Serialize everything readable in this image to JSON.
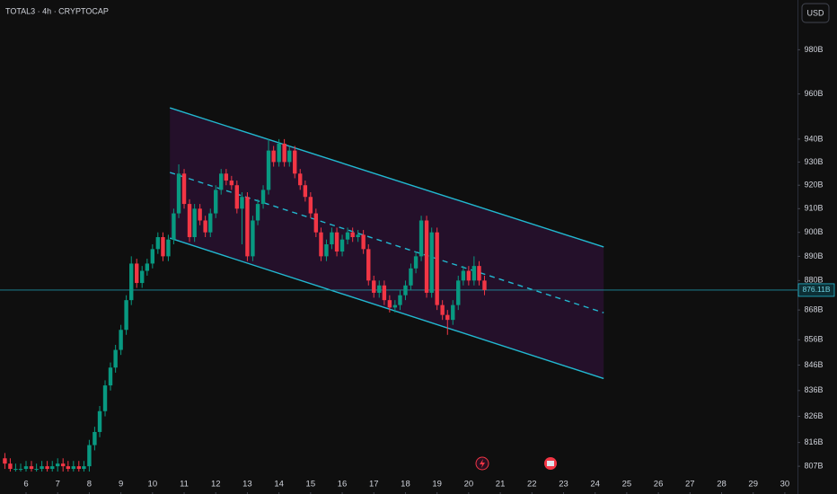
{
  "chart_data": {
    "type": "candlestick",
    "title": "TOTAL3 · 4h · CRYPTOCAP",
    "currency": "USD",
    "log_scale": true,
    "up_color": "#089981",
    "down_color": "#f23645",
    "x": [
      5.33,
      5.5,
      5.67,
      5.83,
      6,
      6.17,
      6.33,
      6.5,
      6.67,
      6.83,
      7,
      7.17,
      7.33,
      7.5,
      7.67,
      7.83,
      8,
      8.17,
      8.33,
      8.5,
      8.67,
      8.83,
      9,
      9.17,
      9.33,
      9.5,
      9.67,
      9.83,
      10,
      10.17,
      10.33,
      10.5,
      10.67,
      10.83,
      11,
      11.17,
      11.33,
      11.5,
      11.67,
      11.83,
      12,
      12.17,
      12.33,
      12.5,
      12.67,
      12.83,
      13,
      13.17,
      13.33,
      13.5,
      13.67,
      13.83,
      14,
      14.17,
      14.33,
      14.5,
      14.67,
      14.83,
      15,
      15.17,
      15.33,
      15.5,
      15.67,
      15.83,
      16,
      16.17,
      16.33,
      16.5,
      16.67,
      16.83,
      17,
      17.17,
      17.33,
      17.5,
      17.67,
      17.83,
      18,
      18.17,
      18.33,
      18.5,
      18.67,
      18.83,
      19,
      19.17,
      19.33,
      19.5,
      19.67,
      19.83,
      20,
      20.17,
      20.33,
      20.5
    ],
    "open": [
      810,
      808,
      806,
      806,
      806,
      807,
      806,
      806,
      807,
      806,
      807,
      808,
      807,
      806,
      807,
      806,
      807,
      815,
      820,
      828,
      838,
      845,
      852,
      860,
      872,
      887,
      879,
      884,
      887,
      893,
      898,
      890,
      897,
      908,
      925,
      912,
      898,
      910,
      905,
      900,
      908,
      918,
      925,
      922,
      920,
      910,
      915,
      890,
      905,
      912,
      918,
      935,
      930,
      938,
      930,
      935,
      925,
      920,
      915,
      908,
      900,
      890,
      895,
      900,
      892,
      897,
      900,
      898,
      899,
      893,
      880,
      875,
      878,
      872,
      869,
      870,
      874,
      878,
      885,
      890,
      905,
      875,
      900,
      870,
      866,
      864,
      870,
      880,
      884,
      880,
      886,
      880
    ],
    "high": [
      812,
      810,
      808,
      808,
      809,
      809,
      808,
      809,
      809,
      809,
      810,
      810,
      809,
      809,
      809,
      809,
      817,
      822,
      830,
      840,
      847,
      854,
      862,
      874,
      890,
      889,
      886,
      889,
      895,
      900,
      900,
      899,
      910,
      929,
      927,
      914,
      912,
      912,
      907,
      910,
      920,
      927,
      927,
      924,
      922,
      917,
      917,
      907,
      914,
      920,
      940,
      937,
      940,
      940,
      937,
      937,
      927,
      922,
      917,
      910,
      902,
      897,
      902,
      902,
      899,
      902,
      902,
      901,
      901,
      895,
      882,
      880,
      880,
      874,
      872,
      876,
      880,
      887,
      892,
      907,
      907,
      902,
      902,
      872,
      868,
      872,
      882,
      886,
      886,
      890,
      888,
      882
    ],
    "low": [
      806,
      805,
      805,
      805,
      805,
      805,
      805,
      805,
      805,
      805,
      805,
      805,
      805,
      805,
      805,
      805,
      805,
      813,
      818,
      826,
      836,
      843,
      850,
      858,
      870,
      877,
      877,
      882,
      885,
      891,
      888,
      888,
      895,
      906,
      910,
      896,
      896,
      903,
      898,
      898,
      906,
      916,
      920,
      918,
      908,
      895,
      888,
      888,
      903,
      910,
      916,
      928,
      928,
      928,
      928,
      923,
      918,
      913,
      906,
      898,
      888,
      888,
      893,
      890,
      890,
      895,
      896,
      896,
      891,
      878,
      873,
      873,
      870,
      867,
      867,
      868,
      872,
      876,
      883,
      888,
      873,
      873,
      868,
      864,
      858,
      862,
      868,
      878,
      878,
      878,
      878,
      874
    ],
    "close": [
      808,
      806,
      806,
      806,
      807,
      806,
      806,
      807,
      806,
      807,
      808,
      807,
      806,
      807,
      806,
      807,
      815,
      820,
      828,
      838,
      845,
      852,
      860,
      872,
      887,
      879,
      884,
      887,
      893,
      898,
      890,
      897,
      908,
      925,
      912,
      898,
      910,
      905,
      900,
      908,
      918,
      925,
      922,
      920,
      910,
      915,
      890,
      905,
      912,
      918,
      935,
      930,
      938,
      930,
      935,
      925,
      920,
      915,
      908,
      900,
      890,
      895,
      900,
      892,
      897,
      900,
      898,
      899,
      893,
      880,
      875,
      878,
      872,
      869,
      870,
      874,
      878,
      885,
      890,
      905,
      875,
      900,
      870,
      866,
      864,
      870,
      880,
      884,
      880,
      886,
      880,
      876.11
    ],
    "last_price": 876.11,
    "last_price_label": "876.11B",
    "channel": {
      "x": [
        10.55,
        24.27
      ],
      "upper": [
        953.8,
        893.9
      ],
      "middle": [
        925.5,
        866.9
      ],
      "lower": [
        897.6,
        840.7
      ],
      "color": "#22b8d0",
      "fill": "#24102a"
    },
    "xlim": [
      5.176,
      30.4
    ],
    "ylim": [
      804,
      1003
    ],
    "xticks": [
      6,
      7,
      8,
      9,
      10,
      11,
      12,
      13,
      14,
      15,
      16,
      17,
      18,
      19,
      20,
      21,
      22,
      23,
      24,
      25,
      26,
      27,
      28,
      29,
      30
    ],
    "yticks": [
      {
        "value": 980,
        "label": "980B"
      },
      {
        "value": 960,
        "label": "960B"
      },
      {
        "value": 940,
        "label": "940B"
      },
      {
        "value": 930,
        "label": "930B"
      },
      {
        "value": 920,
        "label": "920B"
      },
      {
        "value": 910,
        "label": "910B"
      },
      {
        "value": 900,
        "label": "900B"
      },
      {
        "value": 890,
        "label": "890B"
      },
      {
        "value": 880,
        "label": "880B"
      },
      {
        "value": 868,
        "label": "868B"
      },
      {
        "value": 856,
        "label": "856B"
      },
      {
        "value": 846,
        "label": "846B"
      },
      {
        "value": 836,
        "label": "836B"
      },
      {
        "value": 826,
        "label": "826B"
      },
      {
        "value": 816,
        "label": "816B"
      },
      {
        "value": 807,
        "label": "807B"
      }
    ]
  }
}
